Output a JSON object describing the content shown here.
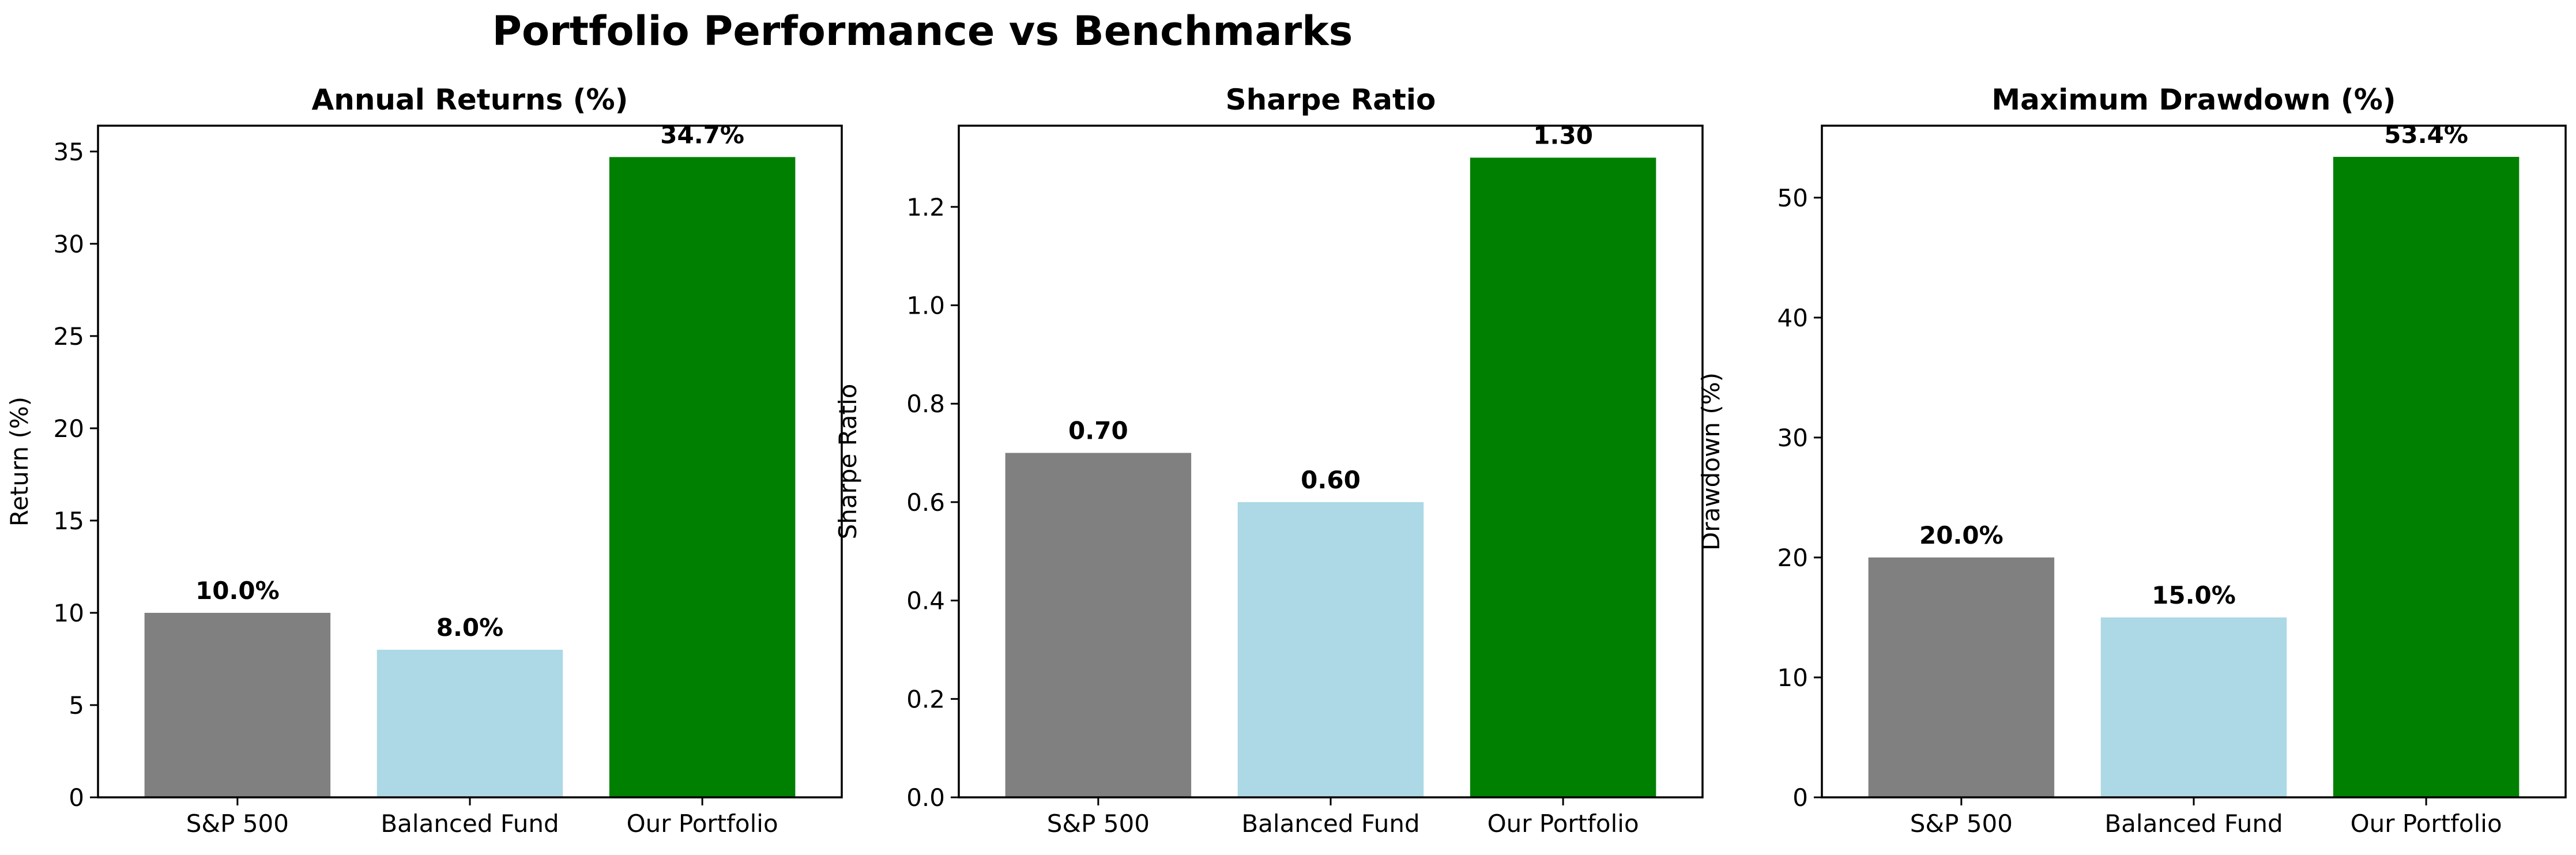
{
  "figure_title": "Portfolio Performance vs Benchmarks",
  "colors": [
    "#808080",
    "#add8e6",
    "#008000"
  ],
  "chart_data": [
    {
      "type": "bar",
      "title": "Annual Returns (%)",
      "ylabel": "Return (%)",
      "categories": [
        "S&P 500",
        "Balanced Fund",
        "Our Portfolio"
      ],
      "values": [
        10.0,
        8.0,
        34.7
      ],
      "data_labels": [
        "10.0%",
        "8.0%",
        "34.7%"
      ],
      "ylim": [
        0,
        36.4
      ],
      "yticks": [
        0,
        5,
        10,
        15,
        20,
        25,
        30,
        35
      ],
      "ytick_labels": [
        "0",
        "5",
        "10",
        "15",
        "20",
        "25",
        "30",
        "35"
      ],
      "grid": false
    },
    {
      "type": "bar",
      "title": "Sharpe Ratio",
      "ylabel": "Sharpe Ratio",
      "categories": [
        "S&P 500",
        "Balanced Fund",
        "Our Portfolio"
      ],
      "values": [
        0.7,
        0.6,
        1.3
      ],
      "data_labels": [
        "0.70",
        "0.60",
        "1.30"
      ],
      "ylim": [
        0,
        1.365
      ],
      "yticks": [
        0,
        0.2,
        0.4,
        0.6,
        0.8,
        1.0,
        1.2
      ],
      "ytick_labels": [
        "0.0",
        "0.2",
        "0.4",
        "0.6",
        "0.8",
        "1.0",
        "1.2"
      ],
      "grid": false
    },
    {
      "type": "bar",
      "title": "Maximum Drawdown (%)",
      "ylabel": "Drawdown (%)",
      "categories": [
        "S&P 500",
        "Balanced Fund",
        "Our Portfolio"
      ],
      "values": [
        20.0,
        15.0,
        53.4
      ],
      "data_labels": [
        "20.0%",
        "15.0%",
        "53.4%"
      ],
      "ylim": [
        0,
        56.0
      ],
      "yticks": [
        0,
        10,
        20,
        30,
        40,
        50
      ],
      "ytick_labels": [
        "0",
        "10",
        "20",
        "30",
        "40",
        "50"
      ],
      "grid": false
    }
  ]
}
